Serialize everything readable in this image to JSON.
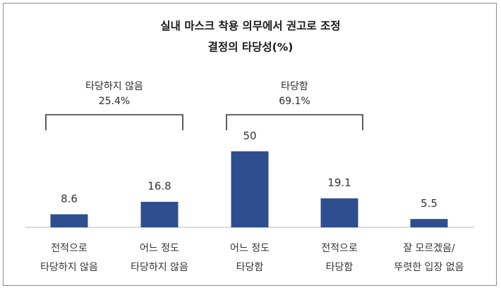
{
  "chart_data": {
    "type": "bar",
    "title_lines": [
      "실내 마스크 착용 의무에서 권고로 조정",
      "결정의 타당성(%)"
    ],
    "categories": [
      [
        "전적으로",
        "타당하지 않음"
      ],
      [
        "어느 정도",
        "타당하지 않음"
      ],
      [
        "어느 정도",
        "타당함"
      ],
      [
        "전적으로",
        "타당함"
      ],
      [
        "잘 모르겠음/",
        "뚜렷한 입장 없음"
      ]
    ],
    "values": [
      8.6,
      16.8,
      50,
      19.1,
      5.5
    ],
    "value_labels": [
      "8.6",
      "16.8",
      "50",
      "19.1",
      "5.5"
    ],
    "groups": [
      {
        "label": "타당하지 않음",
        "value": "25.4%",
        "covers": [
          0,
          1
        ]
      },
      {
        "label": "타당함",
        "value": "69.1%",
        "covers": [
          2,
          3
        ]
      }
    ],
    "ylim": [
      0,
      50
    ],
    "bar_color": "#2f4e8f",
    "grid": false
  }
}
